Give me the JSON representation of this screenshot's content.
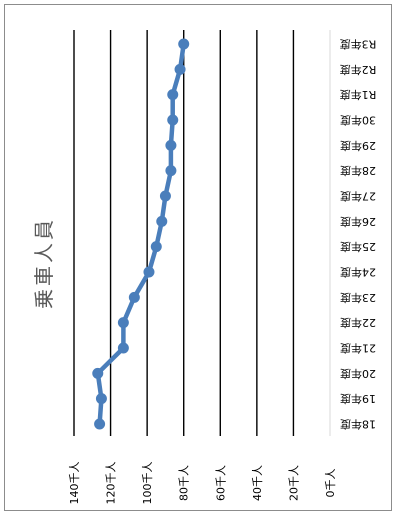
{
  "chart_data": {
    "type": "line",
    "title": "乗車人員",
    "categories": [
      "18年度",
      "19年度",
      "20年度",
      "21年度",
      "22年度",
      "23年度",
      "24年度",
      "25年度",
      "26年度",
      "27年度",
      "28年度",
      "29年度",
      "30年度",
      "R1年度",
      "R2年度",
      "R3年度"
    ],
    "series": [
      {
        "values": [
          126,
          125,
          127,
          113,
          113,
          107,
          99,
          95,
          92,
          90,
          87,
          87,
          86,
          86,
          82,
          80
        ]
      }
    ],
    "ylim": [
      0,
      140
    ],
    "yticks": [
      0,
      20,
      40,
      60,
      80,
      100,
      120,
      140
    ],
    "ytick_labels": [
      "0千人",
      "20千人",
      "40千人",
      "60千人",
      "80千人",
      "100千人",
      "120千人",
      "140千人"
    ],
    "grid": true,
    "orientation": "rotated-90",
    "line_color": "#4a7ebb"
  }
}
